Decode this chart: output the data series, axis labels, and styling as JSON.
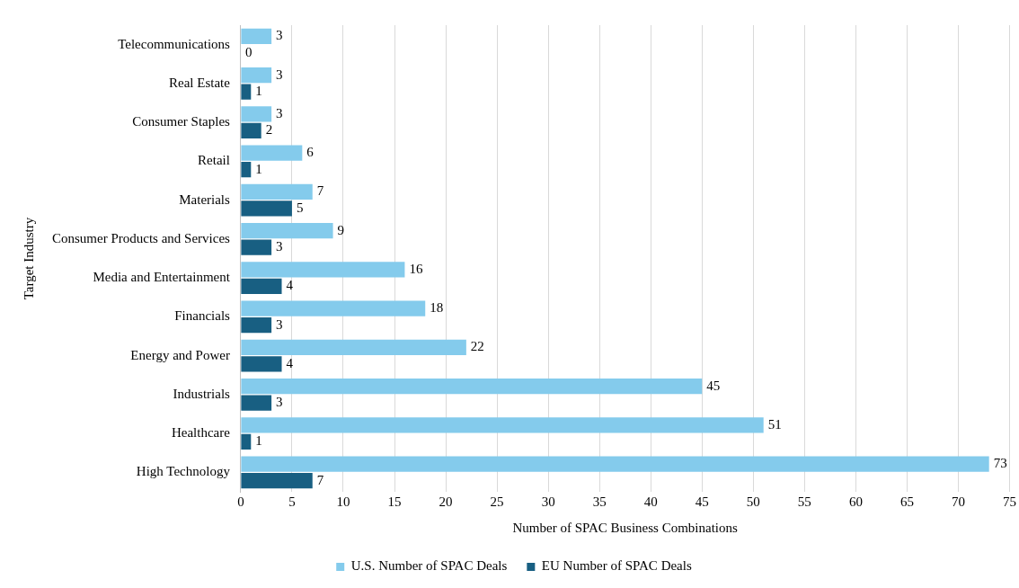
{
  "chart_data": {
    "type": "bar",
    "orientation": "horizontal",
    "xlabel": "Number of SPAC Business Combinations",
    "ylabel": "Target Industry",
    "categories": [
      "Telecommunications",
      "Real Estate",
      "Consumer Staples",
      "Retail",
      "Materials",
      "Consumer Products and Services",
      "Media and Entertainment",
      "Financials",
      "Energy and Power",
      "Industrials",
      "Healthcare",
      "High Technology"
    ],
    "series": [
      {
        "name": "U.S. Number of SPAC Deals",
        "color": "#84cbec",
        "values": [
          3,
          3,
          3,
          6,
          7,
          9,
          16,
          18,
          22,
          45,
          51,
          73
        ]
      },
      {
        "name": "EU Number of SPAC Deals",
        "color": "#185f82",
        "values": [
          0,
          1,
          2,
          1,
          5,
          3,
          4,
          3,
          4,
          3,
          1,
          7
        ]
      }
    ],
    "xlim": [
      0,
      75
    ],
    "xticks": [
      0,
      5,
      10,
      15,
      20,
      25,
      30,
      35,
      40,
      45,
      50,
      55,
      60,
      65,
      70,
      75
    ],
    "grid": "x",
    "legend": "bottom",
    "data_labels": true
  }
}
